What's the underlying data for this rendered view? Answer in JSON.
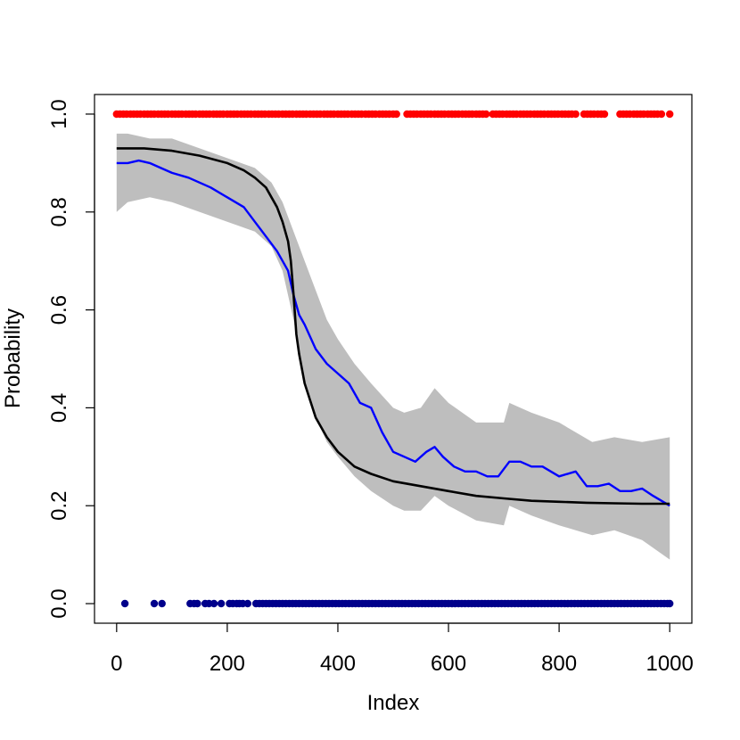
{
  "chart_data": {
    "type": "line",
    "xlabel": "Index",
    "ylabel": "Probability",
    "xlim": [
      -40,
      1040
    ],
    "ylim": [
      -0.04,
      1.04
    ],
    "x_ticks": [
      0,
      200,
      400,
      600,
      800,
      1000
    ],
    "y_ticks": [
      0.0,
      0.2,
      0.4,
      0.6,
      0.8,
      1.0
    ],
    "x_tick_labels": [
      "0",
      "200",
      "400",
      "600",
      "800",
      "1000"
    ],
    "y_tick_labels": [
      "0.0",
      "0.2",
      "0.4",
      "0.6",
      "0.8",
      "1.0"
    ],
    "grid": false,
    "legend": "none",
    "colors": {
      "band": "#bebebe",
      "estimate": "#0000ff",
      "truth": "#000000",
      "class_one": "#ff0000",
      "class_zero": "#00008b"
    },
    "band": {
      "x": [
        0,
        20,
        60,
        100,
        150,
        200,
        250,
        280,
        300,
        320,
        340,
        360,
        380,
        400,
        430,
        460,
        500,
        520,
        550,
        575,
        600,
        650,
        700,
        710,
        750,
        800,
        830,
        860,
        900,
        950,
        1000
      ],
      "upper": [
        0.96,
        0.96,
        0.95,
        0.95,
        0.93,
        0.91,
        0.89,
        0.86,
        0.82,
        0.76,
        0.7,
        0.64,
        0.58,
        0.54,
        0.49,
        0.45,
        0.4,
        0.39,
        0.4,
        0.44,
        0.41,
        0.37,
        0.37,
        0.41,
        0.39,
        0.37,
        0.35,
        0.33,
        0.34,
        0.33,
        0.34
      ],
      "lower": [
        0.8,
        0.82,
        0.83,
        0.82,
        0.8,
        0.78,
        0.76,
        0.73,
        0.68,
        0.58,
        0.45,
        0.38,
        0.33,
        0.3,
        0.26,
        0.23,
        0.2,
        0.19,
        0.19,
        0.22,
        0.2,
        0.17,
        0.16,
        0.2,
        0.18,
        0.16,
        0.15,
        0.14,
        0.15,
        0.13,
        0.09
      ]
    },
    "series": [
      {
        "color": "#0000ff",
        "x": [
          0,
          20,
          40,
          60,
          80,
          100,
          130,
          150,
          170,
          200,
          230,
          250,
          270,
          290,
          310,
          320,
          330,
          340,
          360,
          380,
          400,
          420,
          440,
          460,
          480,
          500,
          520,
          540,
          560,
          575,
          590,
          610,
          630,
          650,
          670,
          690,
          710,
          730,
          750,
          770,
          800,
          830,
          850,
          870,
          890,
          910,
          930,
          950,
          970,
          1000
        ],
        "y": [
          0.9,
          0.9,
          0.905,
          0.9,
          0.89,
          0.88,
          0.87,
          0.86,
          0.85,
          0.83,
          0.81,
          0.78,
          0.75,
          0.72,
          0.68,
          0.63,
          0.59,
          0.57,
          0.52,
          0.49,
          0.47,
          0.45,
          0.41,
          0.4,
          0.35,
          0.31,
          0.3,
          0.29,
          0.31,
          0.32,
          0.3,
          0.28,
          0.27,
          0.27,
          0.26,
          0.26,
          0.29,
          0.29,
          0.28,
          0.28,
          0.26,
          0.27,
          0.24,
          0.24,
          0.245,
          0.23,
          0.23,
          0.235,
          0.22,
          0.2
        ]
      },
      {
        "color": "#000000",
        "x": [
          0,
          50,
          100,
          150,
          200,
          230,
          250,
          270,
          290,
          300,
          310,
          315,
          320,
          325,
          330,
          340,
          360,
          380,
          400,
          430,
          460,
          500,
          550,
          600,
          650,
          700,
          750,
          800,
          850,
          900,
          950,
          1000
        ],
        "y": [
          0.93,
          0.93,
          0.925,
          0.915,
          0.9,
          0.885,
          0.87,
          0.85,
          0.81,
          0.78,
          0.74,
          0.7,
          0.63,
          0.55,
          0.51,
          0.45,
          0.38,
          0.34,
          0.31,
          0.28,
          0.265,
          0.25,
          0.24,
          0.23,
          0.22,
          0.215,
          0.21,
          0.208,
          0.206,
          0.205,
          0.204,
          0.204
        ]
      }
    ],
    "points_y1": [
      0,
      6,
      12,
      18,
      25,
      31,
      37,
      43,
      50,
      56,
      62,
      68,
      75,
      81,
      87,
      93,
      100,
      106,
      112,
      118,
      125,
      131,
      137,
      143,
      150,
      156,
      162,
      168,
      175,
      181,
      187,
      193,
      200,
      206,
      212,
      218,
      225,
      231,
      237,
      243,
      250,
      256,
      262,
      268,
      275,
      281,
      287,
      293,
      300,
      306,
      312,
      318,
      325,
      331,
      337,
      343,
      350,
      356,
      362,
      368,
      375,
      381,
      387,
      393,
      400,
      406,
      412,
      418,
      425,
      431,
      437,
      443,
      450,
      456,
      462,
      468,
      475,
      481,
      487,
      493,
      500,
      506,
      525,
      531,
      537,
      543,
      550,
      556,
      562,
      568,
      575,
      581,
      587,
      593,
      600,
      606,
      612,
      618,
      625,
      631,
      637,
      643,
      650,
      656,
      662,
      668,
      680,
      686,
      692,
      698,
      705,
      711,
      717,
      723,
      730,
      736,
      742,
      748,
      755,
      761,
      767,
      773,
      780,
      786,
      792,
      798,
      805,
      811,
      817,
      823,
      830,
      845,
      851,
      857,
      863,
      870,
      876,
      882,
      910,
      916,
      922,
      928,
      935,
      941,
      947,
      953,
      960,
      966,
      972,
      978,
      985,
      1000
    ],
    "points_y0": [
      15,
      68,
      82,
      133,
      140,
      146,
      160,
      167,
      176,
      189,
      204,
      210,
      217,
      222,
      228,
      237,
      252,
      258,
      264,
      270,
      276,
      282,
      288,
      294,
      300,
      306,
      312,
      318,
      324,
      330,
      336,
      342,
      348,
      354,
      360,
      366,
      372,
      378,
      384,
      390,
      396,
      402,
      408,
      414,
      420,
      426,
      432,
      438,
      444,
      450,
      456,
      462,
      468,
      474,
      480,
      486,
      492,
      498,
      504,
      510,
      516,
      522,
      528,
      534,
      540,
      546,
      552,
      558,
      564,
      570,
      576,
      582,
      588,
      594,
      600,
      606,
      612,
      618,
      624,
      630,
      636,
      642,
      648,
      654,
      660,
      666,
      672,
      678,
      684,
      690,
      696,
      702,
      708,
      714,
      720,
      726,
      732,
      738,
      744,
      750,
      756,
      762,
      768,
      774,
      780,
      786,
      792,
      798,
      804,
      810,
      816,
      822,
      828,
      834,
      840,
      846,
      852,
      858,
      864,
      870,
      876,
      882,
      888,
      894,
      900,
      906,
      912,
      918,
      924,
      930,
      936,
      942,
      948,
      954,
      960,
      966,
      972,
      978,
      984,
      990,
      996,
      1000
    ]
  }
}
